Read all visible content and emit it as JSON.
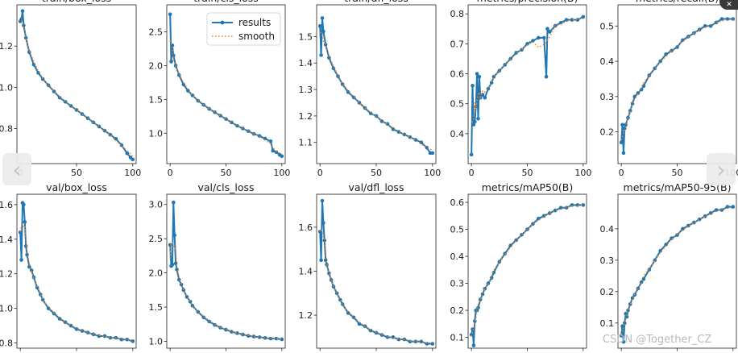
{
  "navigation": {
    "prev_icon": "‹",
    "next_icon": "›",
    "close_icon": "✕"
  },
  "watermark": "CSDN @Together_CZ",
  "legend": {
    "results": "results",
    "smooth": "smooth"
  },
  "colors": {
    "results": "#1f77b4",
    "smooth": "#ff7f0e"
  },
  "chart_data": [
    {
      "type": "line",
      "title": "train/box_loss",
      "xlabel": "",
      "ylabel": "",
      "xlim": [
        -3,
        103
      ],
      "ylim": [
        0.63,
        1.4
      ],
      "xticks": [
        0,
        50,
        100
      ],
      "yticks": [
        0.8,
        1.0,
        1.2
      ],
      "ytick_labels": [
        "0.8",
        "1.0",
        "1.2"
      ],
      "x": [
        0,
        1,
        2,
        3,
        5,
        8,
        12,
        16,
        20,
        25,
        30,
        35,
        40,
        45,
        50,
        55,
        60,
        65,
        70,
        75,
        80,
        85,
        90,
        95,
        98,
        100
      ],
      "y": [
        1.32,
        1.33,
        1.37,
        1.3,
        1.24,
        1.17,
        1.11,
        1.07,
        1.04,
        1.01,
        0.98,
        0.95,
        0.93,
        0.91,
        0.89,
        0.87,
        0.85,
        0.83,
        0.81,
        0.79,
        0.77,
        0.75,
        0.72,
        0.68,
        0.66,
        0.65
      ]
    },
    {
      "type": "line",
      "title": "train/cls_loss",
      "xlabel": "",
      "ylabel": "",
      "xlim": [
        -3,
        103
      ],
      "ylim": [
        0.55,
        2.9
      ],
      "xticks": [
        0,
        50,
        100
      ],
      "yticks": [
        1.0,
        1.5,
        2.0,
        2.5
      ],
      "ytick_labels": [
        "1.0",
        "1.5",
        "2.0",
        "2.5"
      ],
      "x": [
        0,
        1,
        2,
        3,
        5,
        8,
        12,
        16,
        20,
        25,
        30,
        35,
        40,
        45,
        50,
        55,
        60,
        65,
        70,
        75,
        80,
        85,
        90,
        92,
        95,
        98,
        100
      ],
      "y": [
        2.76,
        2.06,
        2.3,
        2.15,
        2.0,
        1.86,
        1.72,
        1.63,
        1.56,
        1.48,
        1.42,
        1.36,
        1.31,
        1.26,
        1.21,
        1.16,
        1.11,
        1.07,
        1.03,
        0.99,
        0.96,
        0.92,
        0.88,
        0.74,
        0.72,
        0.68,
        0.66
      ]
    },
    {
      "type": "line",
      "title": "train/dfl_loss",
      "xlabel": "",
      "ylabel": "",
      "xlim": [
        -3,
        103
      ],
      "ylim": [
        1.02,
        1.62
      ],
      "xticks": [
        0,
        50,
        100
      ],
      "yticks": [
        1.1,
        1.2,
        1.3,
        1.4,
        1.5
      ],
      "ytick_labels": [
        "1.1",
        "1.2",
        "1.3",
        "1.4",
        "1.5"
      ],
      "x": [
        0,
        1,
        2,
        3,
        5,
        8,
        12,
        16,
        20,
        25,
        30,
        35,
        40,
        45,
        50,
        55,
        60,
        65,
        70,
        75,
        80,
        85,
        90,
        95,
        98,
        100
      ],
      "y": [
        1.54,
        1.43,
        1.57,
        1.52,
        1.47,
        1.42,
        1.38,
        1.35,
        1.32,
        1.29,
        1.27,
        1.25,
        1.23,
        1.21,
        1.2,
        1.18,
        1.17,
        1.15,
        1.14,
        1.13,
        1.12,
        1.11,
        1.1,
        1.08,
        1.06,
        1.06
      ]
    },
    {
      "type": "line",
      "title": "metrics/precision(B)",
      "xlabel": "",
      "ylabel": "",
      "xlim": [
        -3,
        103
      ],
      "ylim": [
        0.3,
        0.83
      ],
      "xticks": [
        0,
        50,
        100
      ],
      "yticks": [
        0.4,
        0.5,
        0.6,
        0.7,
        0.8
      ],
      "ytick_labels": [
        "0.4",
        "0.5",
        "0.6",
        "0.7",
        "0.8"
      ],
      "x": [
        0,
        1,
        2,
        3,
        4,
        5,
        6,
        7,
        8,
        10,
        12,
        15,
        18,
        20,
        25,
        30,
        35,
        40,
        45,
        50,
        55,
        60,
        65,
        67,
        68,
        70,
        75,
        80,
        85,
        90,
        95,
        100
      ],
      "y": [
        0.33,
        0.56,
        0.43,
        0.44,
        0.49,
        0.6,
        0.45,
        0.59,
        0.52,
        0.53,
        0.52,
        0.55,
        0.57,
        0.59,
        0.61,
        0.63,
        0.65,
        0.67,
        0.68,
        0.7,
        0.71,
        0.72,
        0.72,
        0.59,
        0.75,
        0.74,
        0.76,
        0.77,
        0.78,
        0.78,
        0.78,
        0.79
      ]
    },
    {
      "type": "line",
      "title": "metrics/recall(B)",
      "xlabel": "",
      "ylabel": "",
      "xlim": [
        -3,
        103
      ],
      "ylim": [
        0.11,
        0.56
      ],
      "xticks": [
        0,
        50,
        100
      ],
      "yticks": [
        0.2,
        0.3,
        0.4,
        0.5
      ],
      "ytick_labels": [
        "0.2",
        "0.3",
        "0.4",
        "0.5"
      ],
      "x": [
        0,
        1,
        2,
        3,
        4,
        6,
        8,
        10,
        12,
        15,
        18,
        20,
        25,
        30,
        35,
        40,
        45,
        50,
        55,
        60,
        65,
        70,
        75,
        80,
        85,
        90,
        95,
        100
      ],
      "y": [
        0.17,
        0.22,
        0.14,
        0.21,
        0.22,
        0.24,
        0.26,
        0.28,
        0.3,
        0.31,
        0.32,
        0.33,
        0.36,
        0.38,
        0.4,
        0.42,
        0.43,
        0.44,
        0.46,
        0.47,
        0.48,
        0.49,
        0.5,
        0.5,
        0.51,
        0.52,
        0.52,
        0.52
      ]
    },
    {
      "type": "line",
      "title": "val/box_loss",
      "xlabel": "",
      "ylabel": "",
      "xlim": [
        -3,
        103
      ],
      "ylim": [
        0.77,
        1.66
      ],
      "xticks": [
        0,
        50,
        100
      ],
      "yticks": [
        0.8,
        1.0,
        1.2,
        1.4,
        1.6
      ],
      "ytick_labels": [
        "0.8",
        "1.0",
        "1.2",
        "1.4",
        "1.6"
      ],
      "x": [
        0,
        1,
        2,
        3,
        4,
        5,
        6,
        8,
        10,
        12,
        15,
        18,
        20,
        25,
        30,
        35,
        40,
        45,
        50,
        55,
        60,
        65,
        70,
        75,
        80,
        85,
        90,
        95,
        100
      ],
      "y": [
        1.44,
        1.28,
        1.61,
        1.6,
        1.5,
        1.36,
        1.31,
        1.24,
        1.22,
        1.18,
        1.12,
        1.08,
        1.05,
        1.0,
        0.97,
        0.94,
        0.92,
        0.9,
        0.88,
        0.87,
        0.86,
        0.85,
        0.84,
        0.84,
        0.83,
        0.83,
        0.82,
        0.82,
        0.81
      ]
    },
    {
      "type": "line",
      "title": "val/cls_loss",
      "xlabel": "",
      "ylabel": "",
      "xlim": [
        -3,
        103
      ],
      "ylim": [
        0.9,
        3.15
      ],
      "xticks": [
        0,
        50,
        100
      ],
      "yticks": [
        1.0,
        1.5,
        2.0,
        2.5,
        3.0
      ],
      "ytick_labels": [
        "1.0",
        "1.5",
        "2.0",
        "2.5",
        "3.0"
      ],
      "x": [
        0,
        1,
        2,
        3,
        4,
        5,
        6,
        8,
        10,
        12,
        15,
        18,
        20,
        25,
        30,
        35,
        40,
        45,
        50,
        55,
        60,
        65,
        70,
        75,
        80,
        85,
        90,
        95,
        100
      ],
      "y": [
        2.41,
        2.1,
        2.12,
        3.03,
        2.55,
        2.14,
        2.05,
        1.9,
        1.83,
        1.75,
        1.65,
        1.58,
        1.52,
        1.43,
        1.35,
        1.29,
        1.24,
        1.2,
        1.17,
        1.14,
        1.12,
        1.1,
        1.08,
        1.07,
        1.06,
        1.05,
        1.04,
        1.04,
        1.03
      ]
    },
    {
      "type": "line",
      "title": "val/dfl_loss",
      "xlabel": "",
      "ylabel": "",
      "xlim": [
        -3,
        103
      ],
      "ylim": [
        1.05,
        1.75
      ],
      "xticks": [
        0,
        50,
        100
      ],
      "yticks": [
        1.2,
        1.4,
        1.6
      ],
      "ytick_labels": [
        "1.2",
        "1.4",
        "1.6"
      ],
      "x": [
        0,
        1,
        2,
        3,
        4,
        5,
        6,
        8,
        10,
        12,
        15,
        18,
        20,
        25,
        30,
        35,
        40,
        45,
        50,
        55,
        60,
        65,
        70,
        75,
        80,
        85,
        90,
        95,
        100
      ],
      "y": [
        1.58,
        1.45,
        1.72,
        1.62,
        1.54,
        1.45,
        1.43,
        1.39,
        1.36,
        1.33,
        1.3,
        1.27,
        1.25,
        1.21,
        1.19,
        1.16,
        1.15,
        1.13,
        1.12,
        1.11,
        1.1,
        1.1,
        1.09,
        1.09,
        1.08,
        1.08,
        1.08,
        1.07,
        1.07
      ]
    },
    {
      "type": "line",
      "title": "metrics/mAP50(B)",
      "xlabel": "",
      "ylabel": "",
      "xlim": [
        -3,
        103
      ],
      "ylim": [
        0.06,
        0.63
      ],
      "xticks": [
        0,
        50,
        100
      ],
      "yticks": [
        0.1,
        0.2,
        0.3,
        0.4,
        0.5,
        0.6
      ],
      "ytick_labels": [
        "0.1",
        "0.2",
        "0.3",
        "0.4",
        "0.5",
        "0.6"
      ],
      "x": [
        0,
        1,
        2,
        3,
        4,
        5,
        6,
        8,
        10,
        12,
        15,
        18,
        20,
        25,
        30,
        35,
        40,
        45,
        50,
        55,
        60,
        65,
        70,
        75,
        80,
        85,
        90,
        95,
        100
      ],
      "y": [
        0.11,
        0.13,
        0.07,
        0.16,
        0.2,
        0.2,
        0.21,
        0.24,
        0.26,
        0.28,
        0.3,
        0.32,
        0.34,
        0.38,
        0.41,
        0.44,
        0.46,
        0.48,
        0.5,
        0.52,
        0.54,
        0.55,
        0.56,
        0.57,
        0.58,
        0.58,
        0.59,
        0.59,
        0.59
      ]
    },
    {
      "type": "line",
      "title": "metrics/mAP50-95(B)",
      "xlabel": "",
      "ylabel": "",
      "xlim": [
        -3,
        103
      ],
      "ylim": [
        0.02,
        0.51
      ],
      "xticks": [
        0,
        50,
        100
      ],
      "yticks": [
        0.1,
        0.2,
        0.3,
        0.4
      ],
      "ytick_labels": [
        "0.1",
        "0.2",
        "0.3",
        "0.4"
      ],
      "x": [
        0,
        1,
        2,
        3,
        4,
        5,
        6,
        8,
        10,
        12,
        15,
        18,
        20,
        25,
        30,
        35,
        40,
        45,
        50,
        55,
        60,
        65,
        70,
        75,
        80,
        85,
        90,
        95,
        100
      ],
      "y": [
        0.06,
        0.09,
        0.04,
        0.1,
        0.13,
        0.12,
        0.14,
        0.16,
        0.18,
        0.19,
        0.21,
        0.23,
        0.24,
        0.27,
        0.3,
        0.33,
        0.35,
        0.37,
        0.38,
        0.4,
        0.41,
        0.42,
        0.43,
        0.44,
        0.45,
        0.46,
        0.46,
        0.47,
        0.47
      ]
    }
  ]
}
